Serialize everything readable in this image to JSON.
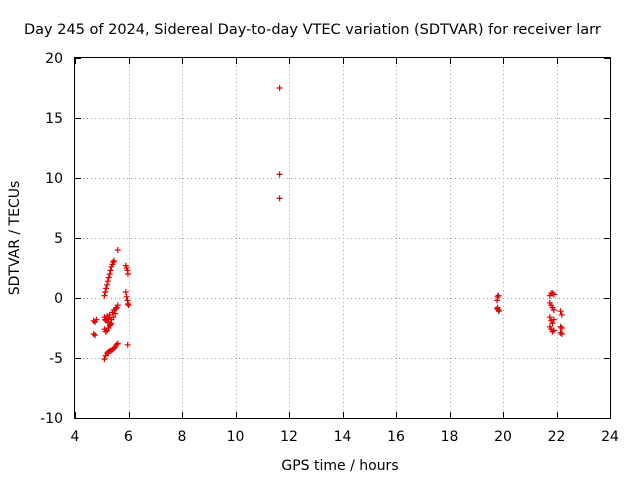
{
  "chart_data": {
    "type": "scatter",
    "title": "Day 245 of 2024, Sidereal Day-to-day VTEC variation (SDTVAR) for receiver larr",
    "xlabel": "GPS time / hours",
    "ylabel": "SDTVAR / TECUs",
    "xlim": [
      4,
      24
    ],
    "ylim": [
      -10,
      20
    ],
    "x_ticks": [
      4,
      6,
      8,
      10,
      12,
      14,
      16,
      18,
      20,
      22,
      24
    ],
    "y_ticks": [
      -10,
      -5,
      0,
      5,
      10,
      15,
      20
    ],
    "x_tick_labels": [
      "4",
      "6",
      "8",
      "10",
      "12",
      "14",
      "16",
      "18",
      "20",
      "22",
      "24"
    ],
    "y_tick_labels": [
      "-10",
      "-5",
      "0",
      "5",
      "10",
      "15",
      "20"
    ],
    "grid": true,
    "marker": "+",
    "color": "#e00000",
    "series": [
      {
        "name": "SDTVAR",
        "points": [
          [
            4.7,
            -1.9
          ],
          [
            4.75,
            -2.0
          ],
          [
            4.8,
            -1.8
          ],
          [
            4.7,
            -3.0
          ],
          [
            4.75,
            -3.1
          ],
          [
            5.1,
            0.2
          ],
          [
            5.13,
            0.5
          ],
          [
            5.16,
            0.8
          ],
          [
            5.2,
            1.1
          ],
          [
            5.23,
            1.4
          ],
          [
            5.26,
            1.7
          ],
          [
            5.3,
            2.0
          ],
          [
            5.33,
            2.3
          ],
          [
            5.36,
            2.6
          ],
          [
            5.4,
            2.8
          ],
          [
            5.43,
            3.0
          ],
          [
            5.46,
            3.1
          ],
          [
            5.6,
            4.0
          ],
          [
            5.9,
            2.7
          ],
          [
            5.93,
            2.5
          ],
          [
            5.96,
            2.3
          ],
          [
            5.98,
            2.0
          ],
          [
            5.9,
            0.5
          ],
          [
            5.93,
            0.1
          ],
          [
            5.96,
            -0.2
          ],
          [
            5.98,
            -0.5
          ],
          [
            6.0,
            -0.6
          ],
          [
            5.1,
            -1.6
          ],
          [
            5.13,
            -1.8
          ],
          [
            5.16,
            -1.9
          ],
          [
            5.2,
            -1.5
          ],
          [
            5.23,
            -2.0
          ],
          [
            5.26,
            -1.7
          ],
          [
            5.3,
            -1.4
          ],
          [
            5.33,
            -2.2
          ],
          [
            5.36,
            -1.8
          ],
          [
            5.4,
            -1.2
          ],
          [
            5.43,
            -1.6
          ],
          [
            5.46,
            -1.0
          ],
          [
            5.5,
            -1.3
          ],
          [
            5.53,
            -0.9
          ],
          [
            5.56,
            -0.8
          ],
          [
            5.6,
            -0.6
          ],
          [
            5.1,
            -2.6
          ],
          [
            5.15,
            -2.8
          ],
          [
            5.2,
            -2.7
          ],
          [
            5.25,
            -2.5
          ],
          [
            5.3,
            -2.3
          ],
          [
            5.35,
            -2.1
          ],
          [
            5.1,
            -5.1
          ],
          [
            5.15,
            -4.8
          ],
          [
            5.2,
            -4.6
          ],
          [
            5.25,
            -4.5
          ],
          [
            5.3,
            -4.4
          ],
          [
            5.35,
            -4.4
          ],
          [
            5.4,
            -4.3
          ],
          [
            5.45,
            -4.2
          ],
          [
            5.5,
            -4.1
          ],
          [
            5.55,
            -3.9
          ],
          [
            5.6,
            -3.8
          ],
          [
            5.97,
            -3.9
          ],
          [
            11.65,
            17.5
          ],
          [
            11.65,
            10.3
          ],
          [
            11.65,
            8.3
          ],
          [
            19.8,
            0.1
          ],
          [
            19.83,
            0.2
          ],
          [
            19.78,
            -0.2
          ],
          [
            19.8,
            -0.8
          ],
          [
            19.83,
            -1.0
          ],
          [
            19.85,
            -1.1
          ],
          [
            19.78,
            -0.9
          ],
          [
            21.75,
            0.2
          ],
          [
            21.8,
            0.4
          ],
          [
            21.85,
            0.4
          ],
          [
            21.9,
            0.3
          ],
          [
            21.75,
            -0.4
          ],
          [
            21.8,
            -0.6
          ],
          [
            21.85,
            -0.8
          ],
          [
            21.9,
            -1.0
          ],
          [
            21.75,
            -1.6
          ],
          [
            21.8,
            -1.9
          ],
          [
            21.85,
            -2.1
          ],
          [
            21.9,
            -1.8
          ],
          [
            21.75,
            -2.4
          ],
          [
            21.8,
            -2.6
          ],
          [
            21.85,
            -2.8
          ],
          [
            21.9,
            -2.7
          ],
          [
            22.15,
            -1.1
          ],
          [
            22.2,
            -1.4
          ],
          [
            22.15,
            -2.4
          ],
          [
            22.2,
            -2.5
          ],
          [
            22.15,
            -2.9
          ],
          [
            22.2,
            -3.0
          ]
        ]
      }
    ]
  }
}
